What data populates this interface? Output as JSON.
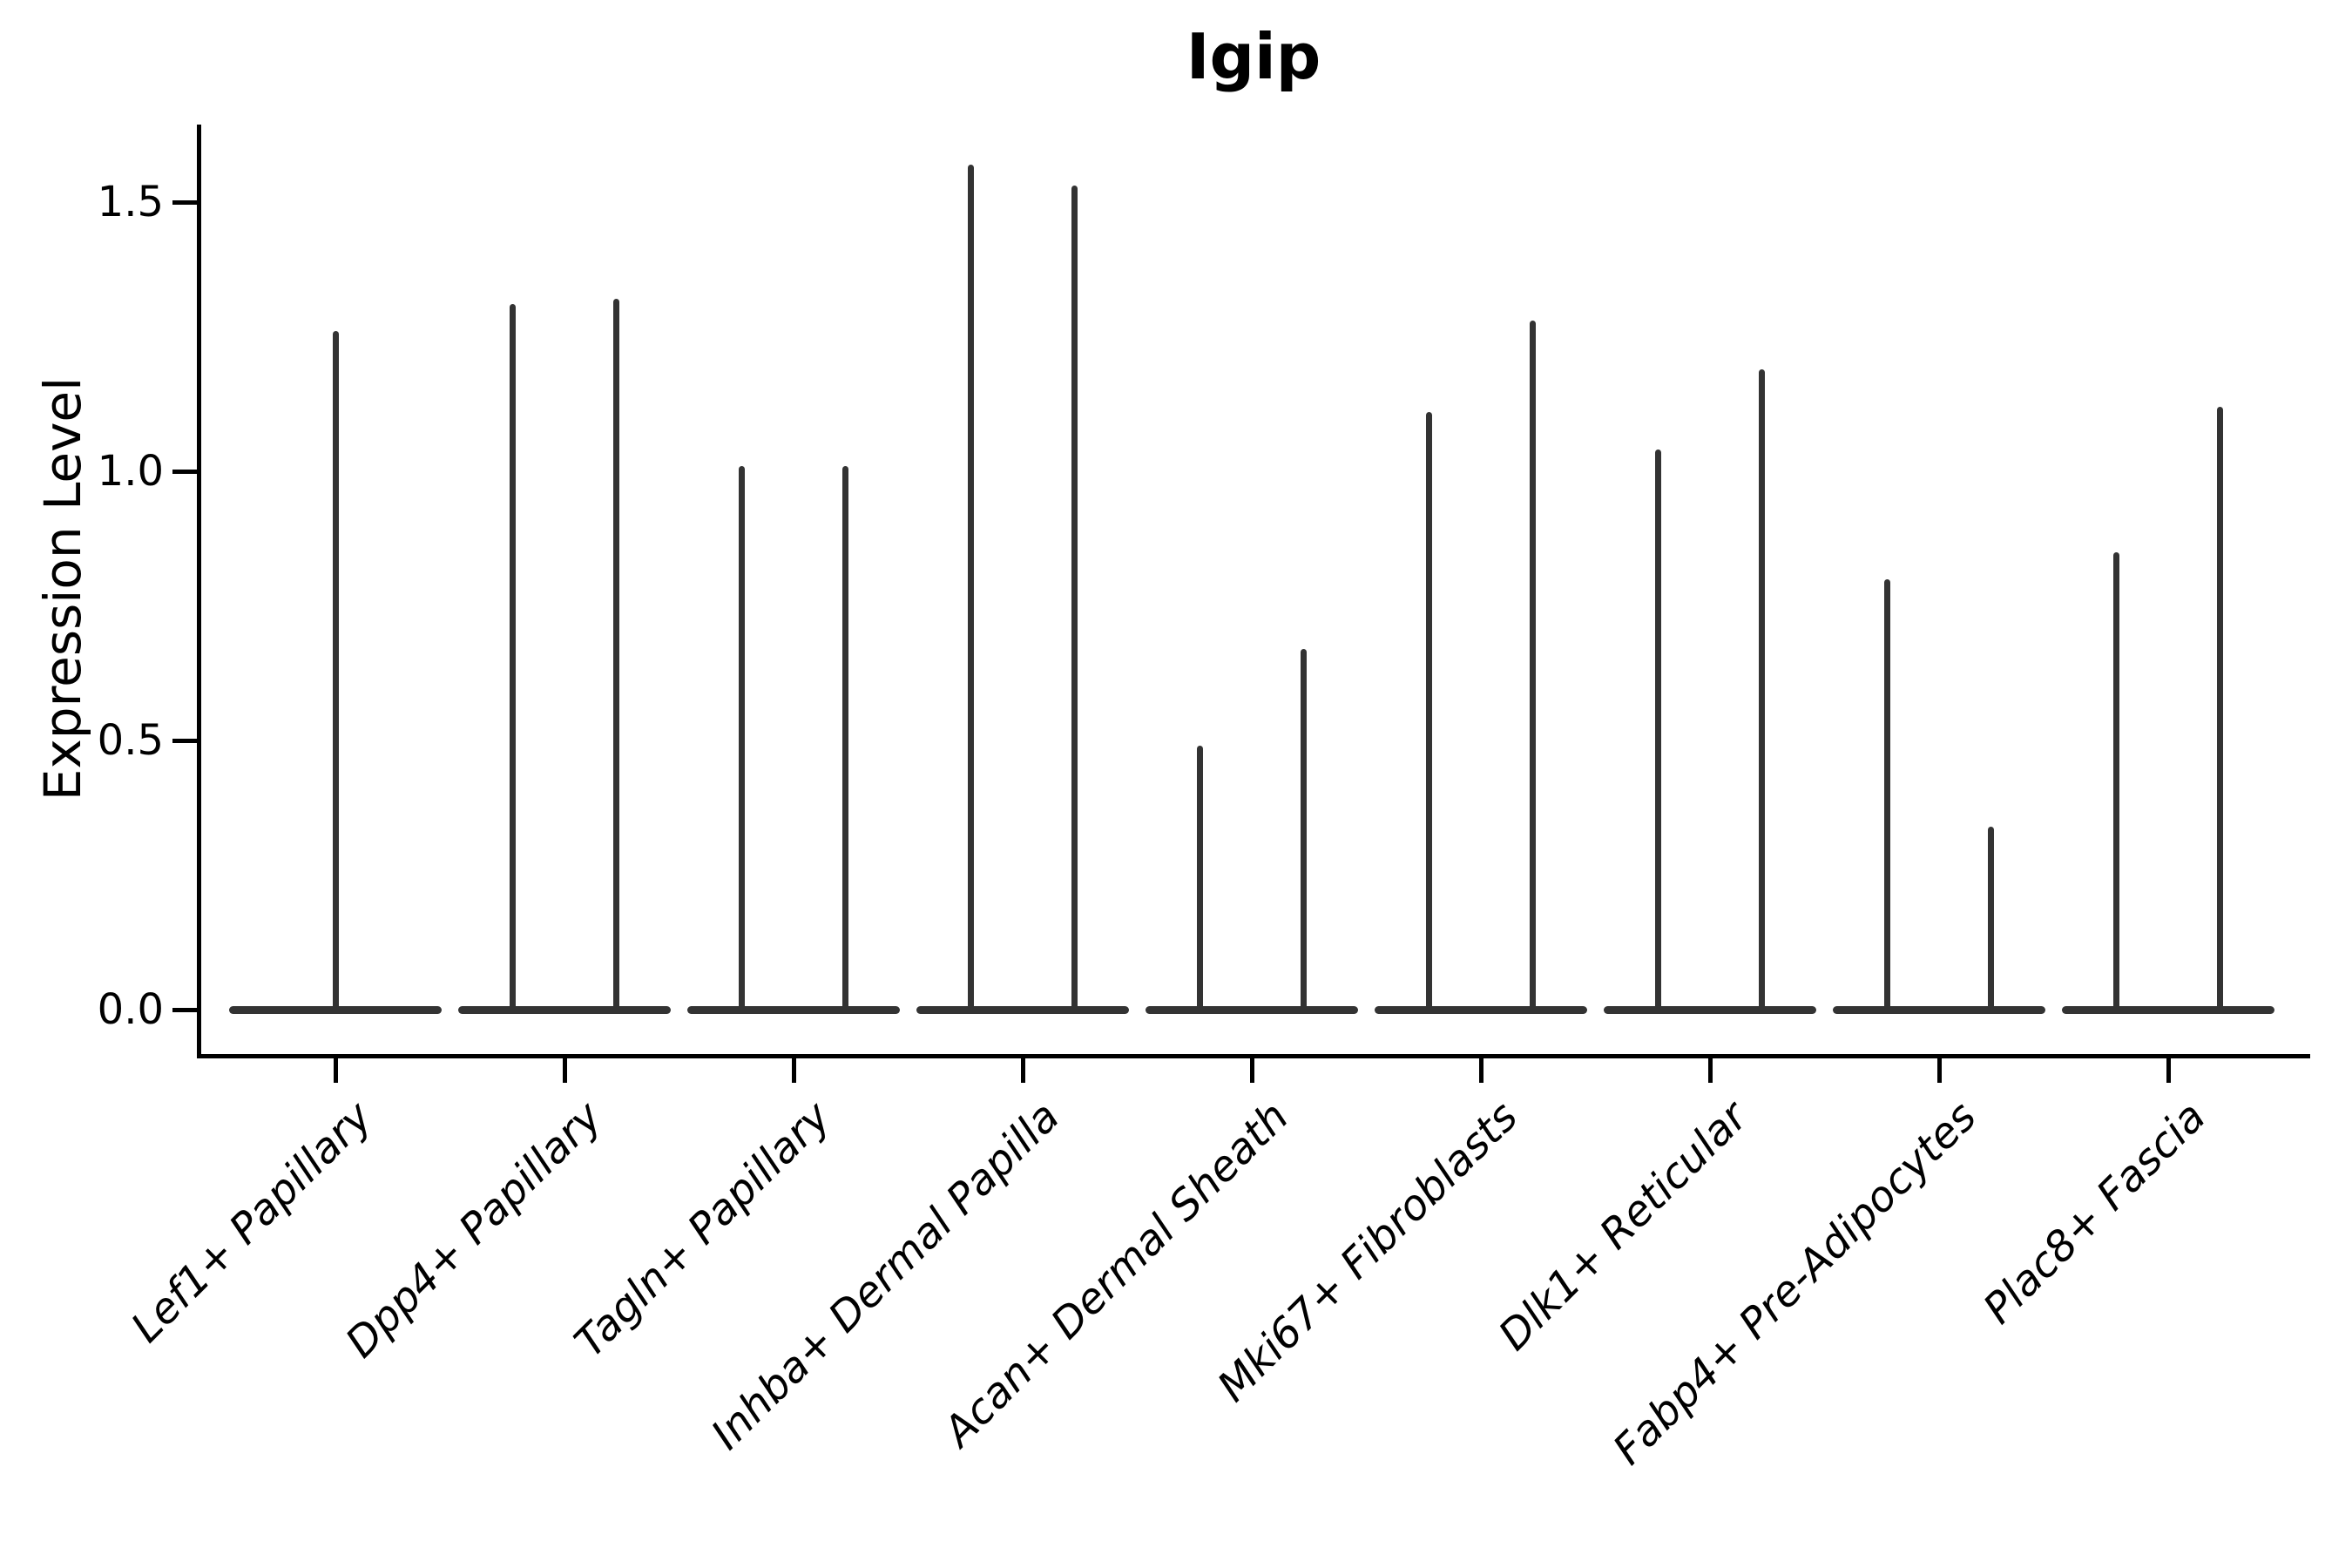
{
  "chart_data": {
    "type": "violin",
    "title": "Igip",
    "ylabel": "Expression Level",
    "xlabel": "",
    "ytick_labels": [
      "0.0",
      "0.5",
      "1.0",
      "1.5"
    ],
    "ytick_values": [
      0.0,
      0.5,
      1.0,
      1.5
    ],
    "ylim": [
      0,
      1.65
    ],
    "grid": false,
    "legend_position": "none",
    "categories": [
      "Lef1+ Papillary",
      "Dpp4+ Papillary",
      "Tagln+ Papillary",
      "Inhba+ Dermal Papilla",
      "Acan+ Dermal Sheath",
      "Mki67+ Fibroblasts",
      "Dlk1+ Reticular",
      "Fabp4+ Pre-Adipocytes",
      "Plac8+ Fascia"
    ],
    "series": [
      {
        "category": "Lef1+ Papillary",
        "spike_maxima": [
          1.26
        ]
      },
      {
        "category": "Dpp4+ Papillary",
        "spike_maxima": [
          1.31,
          1.32
        ]
      },
      {
        "category": "Tagln+ Papillary",
        "spike_maxima": [
          1.01,
          1.01
        ]
      },
      {
        "category": "Inhba+ Dermal Papilla",
        "spike_maxima": [
          1.57,
          1.53
        ]
      },
      {
        "category": "Acan+ Dermal Sheath",
        "spike_maxima": [
          0.49,
          0.67
        ]
      },
      {
        "category": "Mki67+ Fibroblasts",
        "spike_maxima": [
          1.11,
          1.28
        ]
      },
      {
        "category": "Dlk1+ Reticular",
        "spike_maxima": [
          1.04,
          1.19
        ]
      },
      {
        "category": "Fabp4+ Pre-Adipocytes",
        "spike_maxima": [
          0.8,
          0.34
        ]
      },
      {
        "category": "Plac8+ Fascia",
        "spike_maxima": [
          0.85,
          1.12
        ]
      }
    ],
    "violin_color": "#333333",
    "axis_color": "#000000",
    "background_color": "#ffffff",
    "note": "Violin plot: each cell-type violin is collapsed into a wide flat base at expression 0 with thin vertical spikes rising to the maximum expression value; most categories contain two side-by-side violins (two spikes), the first category has a single centered violin."
  }
}
